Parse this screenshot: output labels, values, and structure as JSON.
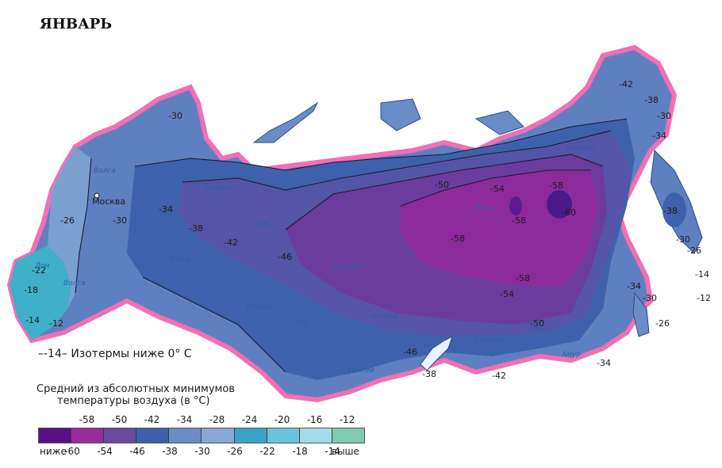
{
  "title": "ЯНВАРЬ",
  "isotherm_legend": "–-14– Изотермы ниже 0° С",
  "legend": {
    "title_line1": "Средний из абсолютных минимумов",
    "title_line2": "температуры воздуха (в °С)",
    "low_label": "ниже",
    "high_label": "выше",
    "top_ticks": [
      "-58",
      "-50",
      "-42",
      "-34",
      "-28",
      "-24",
      "-20",
      "-16",
      "-12"
    ],
    "bottom_ticks": [
      "-60",
      "-54",
      "-46",
      "-38",
      "-30",
      "-26",
      "-22",
      "-18",
      "-14"
    ],
    "colors": [
      "#5b0f86",
      "#9b2a9c",
      "#6a4aa0",
      "#3d5fae",
      "#6b8cc6",
      "#8aa8d4",
      "#3aa4c8",
      "#6cc3de",
      "#a4dbea",
      "#7fcab0"
    ]
  },
  "places": {
    "moscow": "Москва"
  },
  "isotherm_labels": {
    "l30a": "-30",
    "l30b": "-30",
    "l34": "-34",
    "l38": "-38",
    "l42": "-42",
    "l46": "-46",
    "l50a": "-50",
    "l50b": "-50",
    "l54a": "-54",
    "l54b": "-54",
    "l58a": "-58",
    "l58b": "-58",
    "l58c": "-58",
    "l58d": "-58",
    "l60": "-60",
    "l26": "-26",
    "l22": "-22",
    "l18": "-18",
    "l12": "-12",
    "l14": "-14",
    "e42": "-42",
    "e38": "-38",
    "e34": "-34",
    "e30": "-30",
    "e38b": "-38",
    "e30b": "-30",
    "e26": "-26",
    "e34b": "-34",
    "e30c": "-30",
    "e26b": "-26",
    "e14": "-14",
    "e12": "-12",
    "s38": "-38",
    "s42": "-42",
    "s46": "-46",
    "s34": "-34"
  },
  "rivers": {
    "volga": "Волга",
    "don": "Дон",
    "volga2": "Волга",
    "kama": "Кама",
    "pechora": "Печора",
    "ob": "Обь",
    "irtysh": "Иртыш",
    "ob2": "Обь",
    "enisei": "Енисей",
    "enisei2": "Енисей",
    "angara": "Ангара",
    "lena": "Лена",
    "lena2": "Лена",
    "baikal": "Байкал",
    "amur": "Амур",
    "kolyma": "Колыма"
  }
}
